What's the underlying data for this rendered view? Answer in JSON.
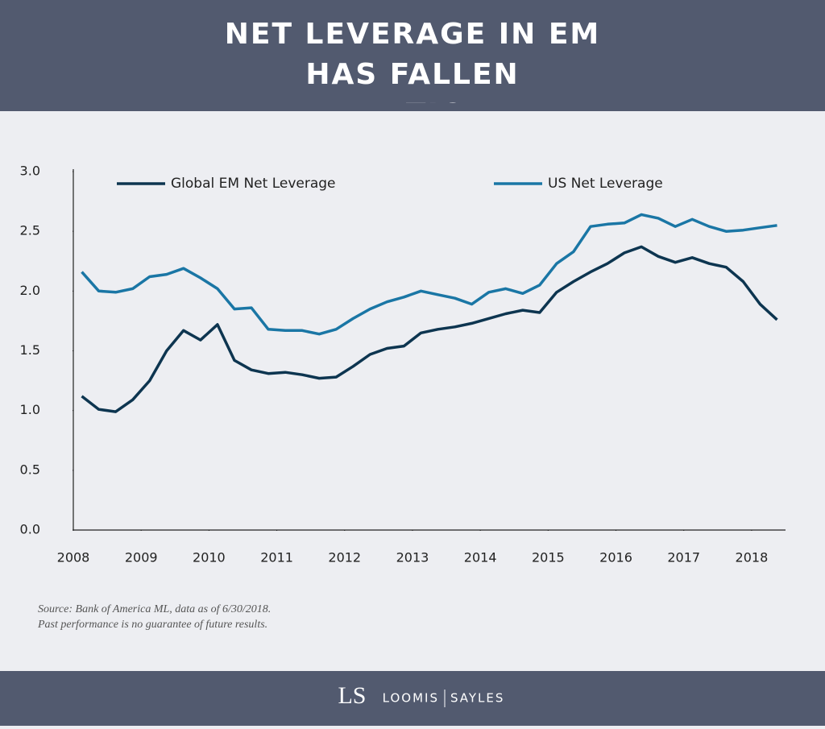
{
  "chart_data": {
    "type": "line",
    "title": "NET LEVERAGE IN EM HAS FALLEN DRAMATICALLY",
    "x": [
      2008.125,
      2008.375,
      2008.625,
      2008.875,
      2009.125,
      2009.375,
      2009.625,
      2009.875,
      2010.125,
      2010.375,
      2010.625,
      2010.875,
      2011.125,
      2011.375,
      2011.625,
      2011.875,
      2012.125,
      2012.375,
      2012.625,
      2012.875,
      2013.125,
      2013.375,
      2013.625,
      2013.875,
      2014.125,
      2014.375,
      2014.625,
      2014.875,
      2015.125,
      2015.375,
      2015.625,
      2015.875,
      2016.125,
      2016.375,
      2016.625,
      2016.875,
      2017.125,
      2017.375,
      2017.625,
      2017.875,
      2018.125,
      2018.375
    ],
    "series": [
      {
        "name": "Global EM Net Leverage",
        "color": "#0d3550",
        "values": [
          1.12,
          1.01,
          0.99,
          1.09,
          1.25,
          1.5,
          1.67,
          1.59,
          1.72,
          1.42,
          1.34,
          1.31,
          1.32,
          1.3,
          1.27,
          1.28,
          1.37,
          1.47,
          1.52,
          1.54,
          1.65,
          1.68,
          1.7,
          1.73,
          1.77,
          1.81,
          1.84,
          1.82,
          1.99,
          2.08,
          2.16,
          2.23,
          2.32,
          2.37,
          2.29,
          2.24,
          2.28,
          2.23,
          2.2,
          2.08,
          1.89,
          1.76
        ]
      },
      {
        "name": "US Net Leverage",
        "color": "#1a76a5",
        "values": [
          2.16,
          2.0,
          1.99,
          2.02,
          2.12,
          2.14,
          2.19,
          2.11,
          2.02,
          1.85,
          1.86,
          1.68,
          1.67,
          1.67,
          1.64,
          1.68,
          1.77,
          1.85,
          1.91,
          1.95,
          2.0,
          1.97,
          1.94,
          1.89,
          1.99,
          2.02,
          1.98,
          2.05,
          2.23,
          2.33,
          2.54,
          2.56,
          2.57,
          2.64,
          2.61,
          2.54,
          2.6,
          2.54,
          2.5,
          2.51,
          2.53,
          2.55
        ]
      }
    ],
    "xlim": [
      2008,
      2018.5
    ],
    "xticks": [
      2008,
      2009,
      2010,
      2011,
      2012,
      2013,
      2014,
      2015,
      2016,
      2017,
      2018
    ],
    "ylim": [
      0,
      3
    ],
    "yticks": [
      {
        "value": 0,
        "label": "0.0"
      },
      0.5,
      {
        "value": 1,
        "label": "1.0"
      },
      1.5,
      {
        "value": 2,
        "label": "2.0"
      },
      2.5,
      {
        "value": 3,
        "label": "3.0"
      }
    ],
    "grid": false,
    "legend": "top",
    "source": [
      "Source: Bank of America ML, data as of 6/30/2018.",
      "Past performance is no guarantee of future results."
    ]
  },
  "footer": {
    "monogram": "LS",
    "brand_left": "LOOMIS",
    "brand_right": "SAYLES"
  }
}
